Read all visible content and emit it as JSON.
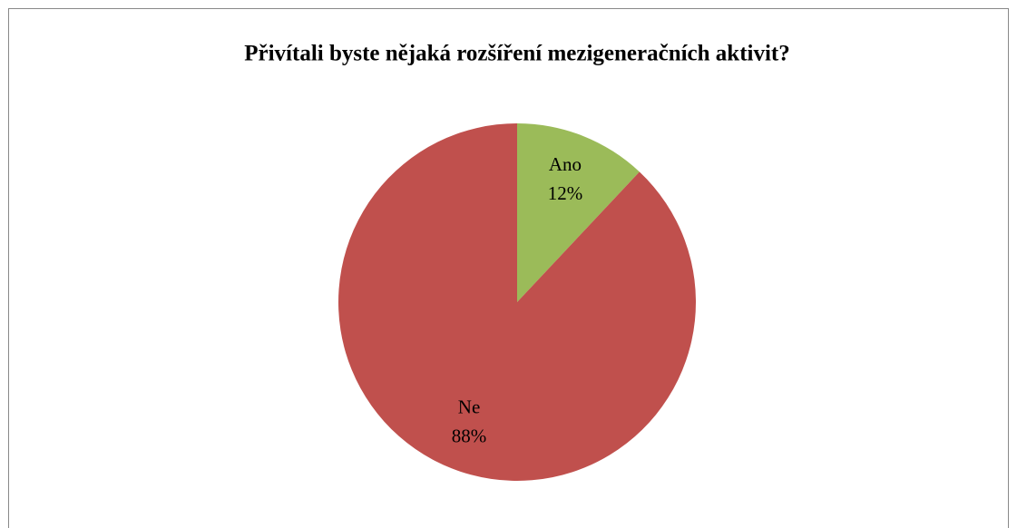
{
  "chart_data": {
    "type": "pie",
    "title": "Přivítali byste nějaká rozšíření mezigeneračních aktivit?",
    "categories": [
      "Ano",
      "Ne"
    ],
    "values": [
      12,
      88
    ],
    "value_labels": [
      "12%",
      "88%"
    ],
    "colors": [
      "#9bbb59",
      "#c0504d"
    ]
  }
}
